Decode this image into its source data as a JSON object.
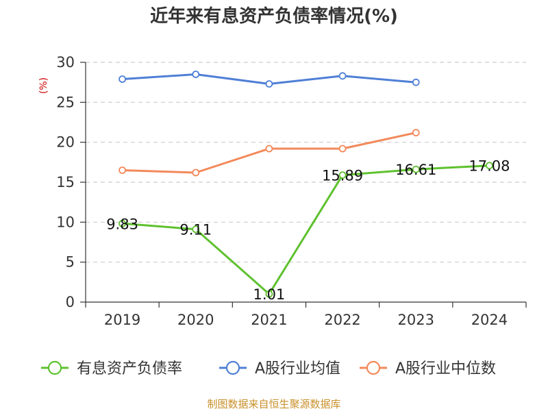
{
  "chart_data": {
    "type": "line",
    "title": "近年来有息资产负债率情况(%)",
    "ylabel": "(%)",
    "xlabel": "",
    "categories": [
      "2019",
      "2020",
      "2021",
      "2022",
      "2023",
      "2024"
    ],
    "ylim": [
      0,
      30
    ],
    "yticks": [
      0,
      5,
      10,
      15,
      20,
      25,
      30
    ],
    "grid": "horizontal-dashed",
    "legend_position": "bottom",
    "series": [
      {
        "name": "有息资产负债率",
        "color": "#5ec12e",
        "values": [
          9.83,
          9.11,
          1.01,
          15.89,
          16.61,
          17.08
        ],
        "labels": [
          "9.83",
          "9.11",
          "1.01",
          "15.89",
          "16.61",
          "17.08"
        ]
      },
      {
        "name": "A股行业均值",
        "color": "#4f7fd6",
        "values": [
          27.9,
          28.5,
          27.3,
          28.3,
          27.5,
          null
        ]
      },
      {
        "name": "A股行业中位数",
        "color": "#f2895a",
        "values": [
          16.5,
          16.2,
          19.2,
          19.2,
          21.2,
          null
        ]
      }
    ]
  },
  "source": "制图数据来自恒生聚源数据库"
}
